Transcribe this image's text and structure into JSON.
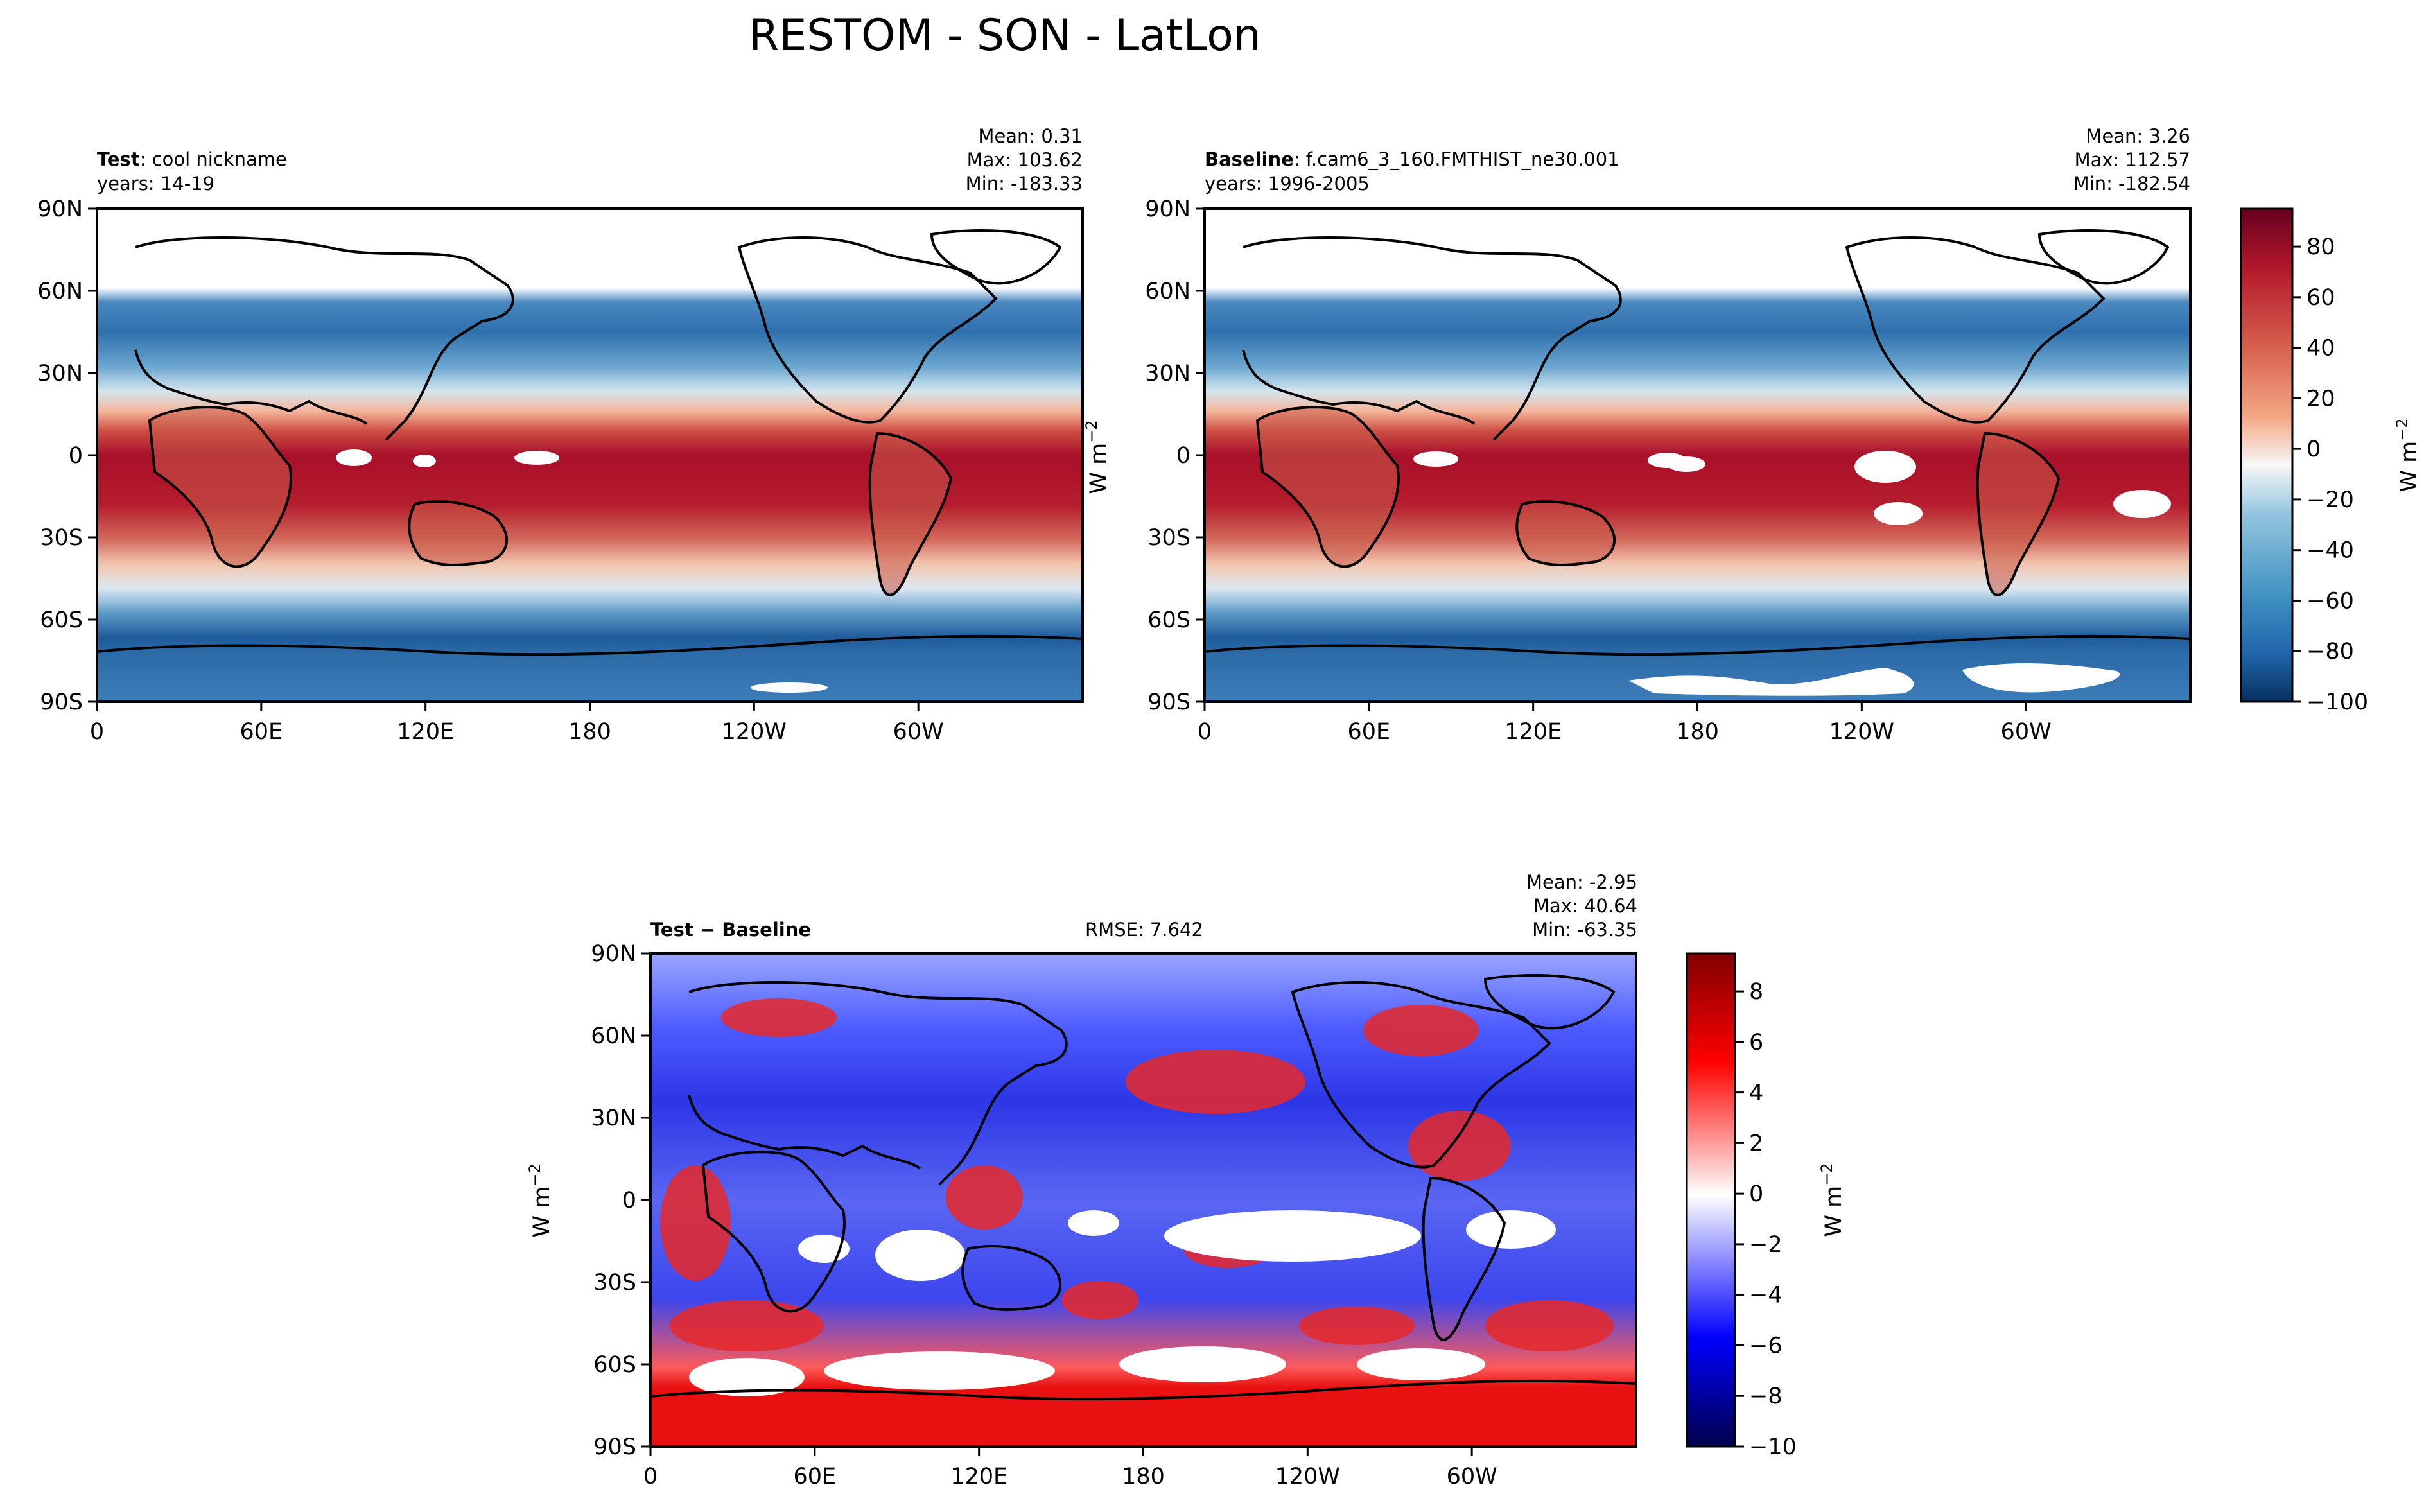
{
  "figure": {
    "title": "RESTOM - SON - LatLon"
  },
  "chart_data": [
    {
      "id": "test",
      "type": "heatmap",
      "projection": "PlateCarree (lon 0..360, lat -90..90)",
      "header": {
        "name_bold": "Test",
        "name_rest": ": cool nickname",
        "years": "years: 14-19",
        "mean": "Mean:  0.31",
        "max": "Max: 103.62",
        "min": "Min: -183.33"
      },
      "stats": {
        "mean": 0.31,
        "max": 103.62,
        "min": -183.33
      },
      "x_ticks": [
        "0",
        "60E",
        "120E",
        "180",
        "120W",
        "60W"
      ],
      "y_ticks": [
        "90N",
        "60N",
        "30N",
        "0",
        "30S",
        "60S",
        "90S"
      ],
      "xlim": [
        0,
        360
      ],
      "ylim": [
        -90,
        90
      ],
      "colormap": "RdBu_r",
      "clim": [
        -100,
        95
      ]
    },
    {
      "id": "baseline",
      "type": "heatmap",
      "projection": "PlateCarree (lon 0..360, lat -90..90)",
      "header": {
        "name_bold": "Baseline",
        "name_rest": ": f.cam6_3_160.FMTHIST_ne30.001",
        "years": "years: 1996-2005",
        "mean": "Mean:  3.26",
        "max": "Max: 112.57",
        "min": "Min: -182.54"
      },
      "stats": {
        "mean": 3.26,
        "max": 112.57,
        "min": -182.54
      },
      "x_ticks": [
        "0",
        "60E",
        "120E",
        "180",
        "120W",
        "60W"
      ],
      "y_ticks": [
        "90N",
        "60N",
        "30N",
        "0",
        "30S",
        "60S",
        "90S"
      ],
      "xlim": [
        0,
        360
      ],
      "ylim": [
        -90,
        90
      ],
      "colormap": "RdBu_r",
      "clim": [
        -100,
        95
      ],
      "colorbar": {
        "ticks": [
          "80",
          "60",
          "40",
          "20",
          "0",
          "−20",
          "−40",
          "−60",
          "−80",
          "−100"
        ],
        "tick_values": [
          80,
          60,
          40,
          20,
          0,
          -20,
          -40,
          -60,
          -80,
          -100
        ],
        "label_base": "W m",
        "label_exp": "−2"
      }
    },
    {
      "id": "diff",
      "type": "heatmap",
      "projection": "PlateCarree (lon 0..360, lat -90..90)",
      "header": {
        "name_bold": "Test − Baseline",
        "rmse": "RMSE: 7.642",
        "mean": "Mean: -2.95",
        "max": "Max: 40.64",
        "min": "Min: -63.35"
      },
      "stats": {
        "mean": -2.95,
        "max": 40.64,
        "min": -63.35,
        "rmse": 7.642
      },
      "x_ticks": [
        "0",
        "60E",
        "120E",
        "180",
        "120W",
        "60W"
      ],
      "y_ticks": [
        "90N",
        "60N",
        "30N",
        "0",
        "30S",
        "60S",
        "90S"
      ],
      "xlim": [
        0,
        360
      ],
      "ylim": [
        -90,
        90
      ],
      "colormap": "seismic",
      "clim": [
        -10,
        9.5
      ],
      "colorbar": {
        "ticks": [
          "8",
          "6",
          "4",
          "2",
          "0",
          "−2",
          "−4",
          "−6",
          "−8",
          "−10"
        ],
        "tick_values": [
          8,
          6,
          4,
          2,
          0,
          -2,
          -4,
          -6,
          -8,
          -10
        ],
        "label_base": "W m",
        "label_exp": "−2"
      }
    }
  ],
  "shared": {
    "ylabel_base": "W m",
    "ylabel_exp": "−2"
  },
  "colors": {
    "rdbu_dark_red": "#67001f",
    "rdbu_dark_blue": "#053061",
    "seismic_dark_red": "#800000",
    "seismic_dark_blue": "#00004c",
    "coastline": "#000000"
  }
}
